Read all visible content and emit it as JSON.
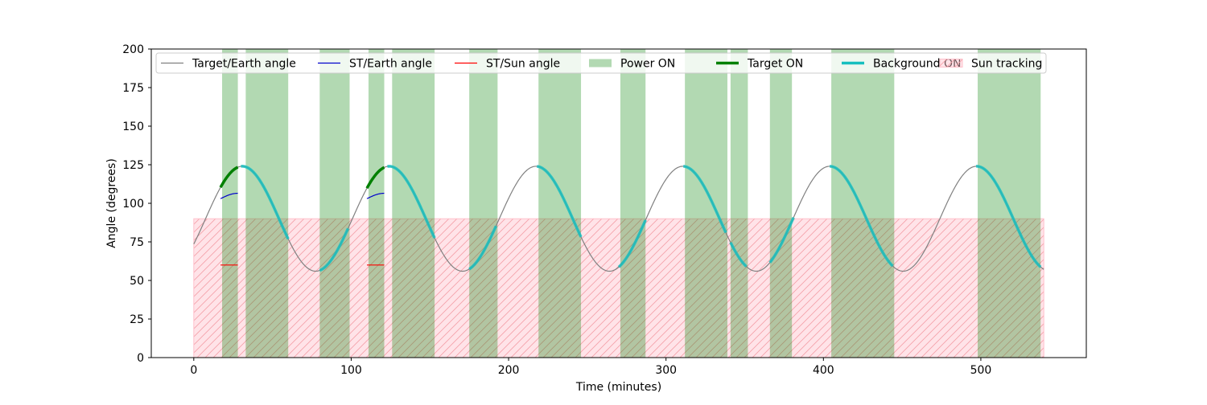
{
  "chart_data": {
    "type": "line",
    "xlabel": "Time (minutes)",
    "ylabel": "Angle (degrees)",
    "xlim": [
      -27,
      567
    ],
    "ylim": [
      0,
      200
    ],
    "xticks": [
      0,
      100,
      200,
      300,
      400,
      500
    ],
    "yticks": [
      0,
      25,
      50,
      75,
      100,
      125,
      150,
      175,
      200
    ],
    "legend_position": "top",
    "colors": {
      "target_earth": "#808080",
      "st_earth": "#0000cc",
      "st_sun": "#ff0000",
      "power_on": "#008000",
      "target_on": "#008000",
      "background_on": "#17bfbf",
      "sun_tracking_fill": "#ffc0cb",
      "sun_tracking_hatch": "#f4a0a8"
    },
    "legend": [
      {
        "key": "target_earth",
        "label": "Target/Earth angle",
        "kind": "line"
      },
      {
        "key": "st_earth",
        "label": "ST/Earth angle",
        "kind": "line"
      },
      {
        "key": "st_sun",
        "label": "ST/Sun angle",
        "kind": "line"
      },
      {
        "key": "power_on",
        "label": "Power ON",
        "kind": "patch"
      },
      {
        "key": "target_on",
        "label": "Target ON",
        "kind": "thick"
      },
      {
        "key": "background_on",
        "label": "Background ON",
        "kind": "thick"
      },
      {
        "key": "sun_tracking",
        "label": "Sun tracking",
        "kind": "hatch"
      }
    ],
    "target_earth_curve": {
      "x_start": 0,
      "x_end": 540,
      "period": 93.3,
      "mean": 90,
      "amplitude": 34,
      "phase_peak_at": 30.8
    },
    "sun_tracking_region": {
      "x": [
        0,
        540
      ],
      "y": [
        0,
        90
      ]
    },
    "power_on_intervals": [
      [
        18,
        28
      ],
      [
        33,
        60
      ],
      [
        80,
        99
      ],
      [
        111,
        121
      ],
      [
        126,
        153
      ],
      [
        175,
        193
      ],
      [
        219,
        246
      ],
      [
        271,
        287
      ],
      [
        312,
        339
      ],
      [
        341,
        352
      ],
      [
        366,
        380
      ],
      [
        405,
        445
      ],
      [
        498,
        538
      ]
    ],
    "target_on_intervals": [
      [
        17,
        28
      ],
      [
        110,
        121
      ]
    ],
    "background_on_intervals": [
      [
        30,
        60
      ],
      [
        80,
        98
      ],
      [
        123,
        153
      ],
      [
        175,
        192
      ],
      [
        218,
        246
      ],
      [
        270,
        287
      ],
      [
        311,
        338
      ],
      [
        341,
        351
      ],
      [
        366,
        381
      ],
      [
        404,
        444
      ],
      [
        497,
        538
      ]
    ],
    "st_earth_segments": [
      {
        "x": [
          17,
          28
        ],
        "y_start": 103,
        "y_end": 106.5
      },
      {
        "x": [
          110,
          121
        ],
        "y_start": 103,
        "y_end": 106.5
      }
    ],
    "st_sun_segments": [
      {
        "x": [
          17,
          28
        ],
        "y": 60
      },
      {
        "x": [
          110,
          121
        ],
        "y": 60
      }
    ]
  }
}
